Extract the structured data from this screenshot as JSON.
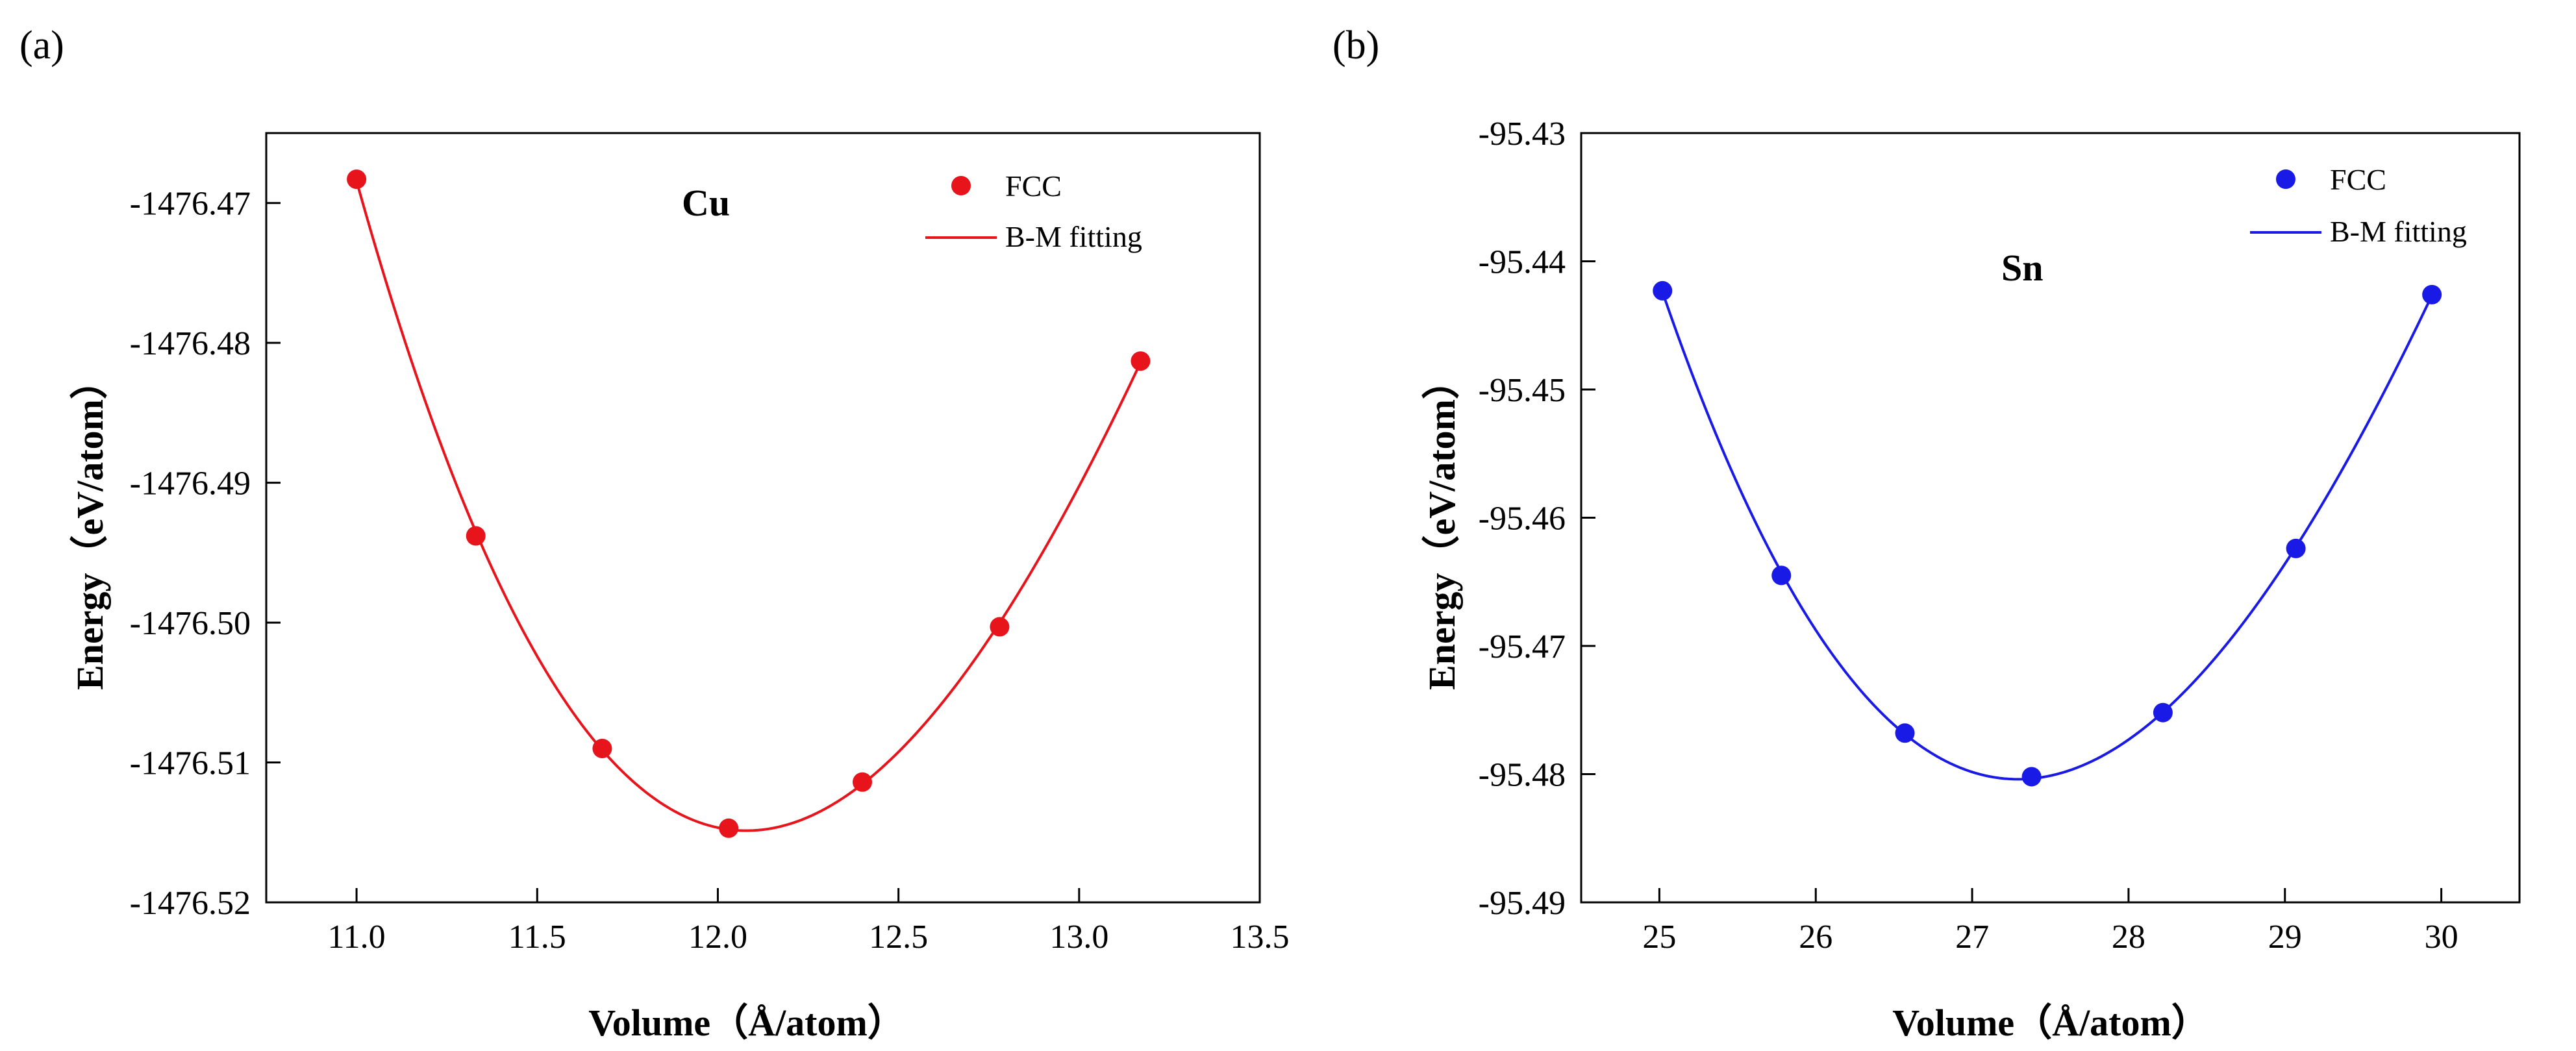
{
  "chart_data": [
    {
      "type": "scatter",
      "panel_label": "(a)",
      "title": "Cu",
      "xlabel": "Volume（Å/atom）",
      "ylabel": "Energy（eV/atom）",
      "xlim": [
        10.75,
        13.5
      ],
      "ylim": [
        -1476.52,
        -1476.465
      ],
      "xticks": [
        11.0,
        11.5,
        12.0,
        12.5,
        13.0,
        13.5
      ],
      "xtick_labels": [
        "11.0",
        "11.5",
        "12.0",
        "12.5",
        "13.0",
        "13.5"
      ],
      "yticks": [
        -1476.52,
        -1476.51,
        -1476.5,
        -1476.49,
        -1476.48,
        -1476.47
      ],
      "ytick_labels": [
        "-1476.52",
        "-1476.51",
        "-1476.50",
        "-1476.49",
        "-1476.48",
        "-1476.47"
      ],
      "color": "#e8141c",
      "legend": [
        "FCC",
        "B-M fitting"
      ],
      "legend_position": "top-right",
      "series": [
        {
          "name": "FCC",
          "kind": "points",
          "x": [
            11.0,
            11.33,
            11.68,
            12.03,
            12.4,
            12.78,
            13.17
          ],
          "y": [
            -1476.4683,
            -1476.4938,
            -1476.509,
            -1476.5147,
            -1476.5114,
            -1476.5003,
            -1476.4813
          ]
        },
        {
          "name": "B-M fitting",
          "kind": "line",
          "min_x": 12.08,
          "min_y": -1476.5148,
          "x_range": [
            11.0,
            13.17
          ]
        }
      ]
    },
    {
      "type": "scatter",
      "panel_label": "(b)",
      "title": "Sn",
      "xlabel": "Volume（Å/atom）",
      "ylabel": "Energy（eV/atom）",
      "xlim": [
        24.5,
        30.5
      ],
      "ylim": [
        -95.49,
        -95.43
      ],
      "xticks": [
        25,
        26,
        27,
        28,
        29,
        30
      ],
      "xtick_labels": [
        "25",
        "26",
        "27",
        "28",
        "29",
        "30"
      ],
      "yticks": [
        -95.49,
        -95.48,
        -95.47,
        -95.46,
        -95.45,
        -95.44,
        -95.43
      ],
      "ytick_labels": [
        "-95.49",
        "-95.48",
        "-95.47",
        "-95.46",
        "-95.45",
        "-95.44",
        "-95.43"
      ],
      "color": "#1a1ae6",
      "legend": [
        "FCC",
        "B-M fitting"
      ],
      "legend_position": "top-right",
      "series": [
        {
          "name": "FCC",
          "kind": "points",
          "x": [
            25.02,
            25.78,
            26.57,
            27.38,
            28.22,
            29.07,
            29.94
          ],
          "y": [
            -95.4423,
            -95.4645,
            -95.4768,
            -95.4802,
            -95.4752,
            -95.4624,
            -95.4426
          ]
        },
        {
          "name": "B-M fitting",
          "kind": "line",
          "min_x": 27.35,
          "min_y": -95.4802,
          "x_range": [
            25.02,
            29.94
          ]
        }
      ]
    }
  ]
}
